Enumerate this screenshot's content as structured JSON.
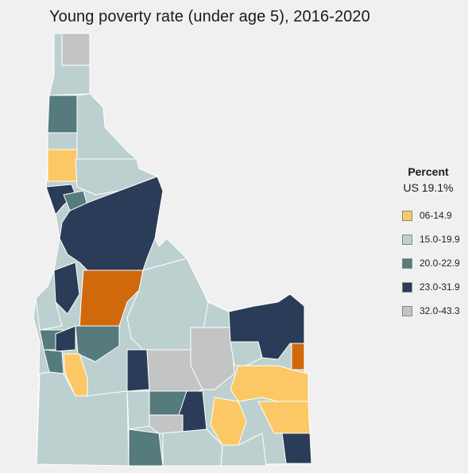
{
  "title": "Young poverty rate (under age 5), 2016-2020",
  "legend": {
    "title": "Percent",
    "subtitle": "US 19.1%",
    "items": [
      {
        "label": "06-14.9",
        "color": "#fcc865"
      },
      {
        "label": "15.0-19.9",
        "color": "#bdd0d0"
      },
      {
        "label": "20.0-22.9",
        "color": "#557b7c"
      },
      {
        "label": "23.0-31.9",
        "color": "#2b3c58"
      },
      {
        "label": "32.0-43.3",
        "color": "#c3c4c4"
      }
    ]
  },
  "other_color": "#d0680c"
}
